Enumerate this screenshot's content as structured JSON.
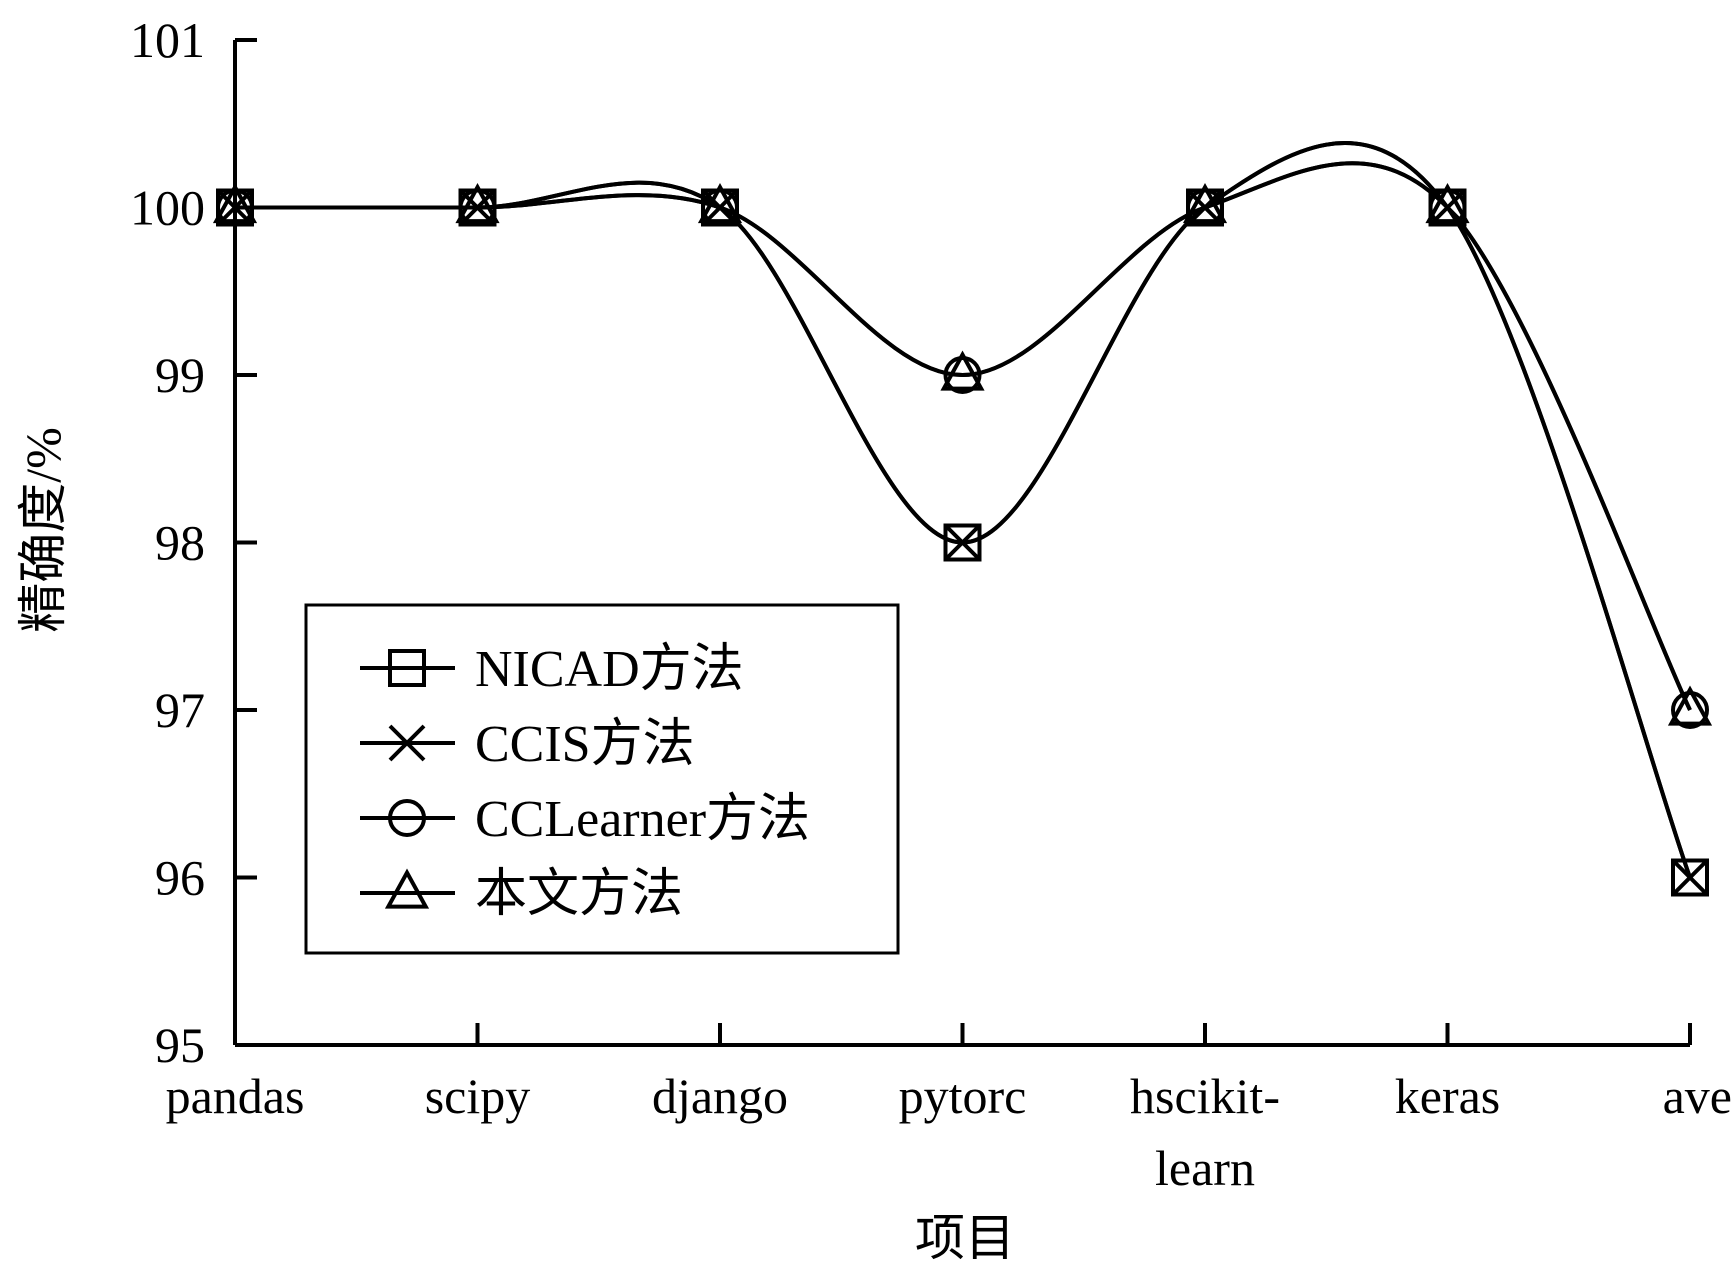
{
  "chart_data": {
    "type": "line",
    "xlabel": "项目",
    "ylabel": "精确度/%",
    "ylim": [
      95,
      101
    ],
    "yticks": [
      "95",
      "96",
      "97",
      "98",
      "99",
      "100",
      "101"
    ],
    "categories": [
      [
        "pandas"
      ],
      [
        "scipy"
      ],
      [
        "django"
      ],
      [
        "pytorc"
      ],
      [
        "hscikit-",
        "learn"
      ],
      [
        "keras"
      ],
      [
        "ave"
      ]
    ],
    "series": [
      {
        "name": "NICAD方法",
        "marker": "square",
        "values": [
          100,
          100,
          100,
          98,
          100,
          100,
          96
        ]
      },
      {
        "name": "CCIS方法",
        "marker": "x",
        "values": [
          100,
          100,
          100,
          98,
          100,
          100,
          96
        ]
      },
      {
        "name": "CCLearner方法",
        "marker": "circle",
        "values": [
          100,
          100,
          100,
          99,
          100,
          100,
          97
        ]
      },
      {
        "name": "本文方法",
        "marker": "triangle",
        "values": [
          100,
          100,
          100,
          99,
          100,
          100,
          97
        ]
      }
    ],
    "smooth": true,
    "grid": false,
    "legend_position": "center-left",
    "line_color": "#000000"
  }
}
